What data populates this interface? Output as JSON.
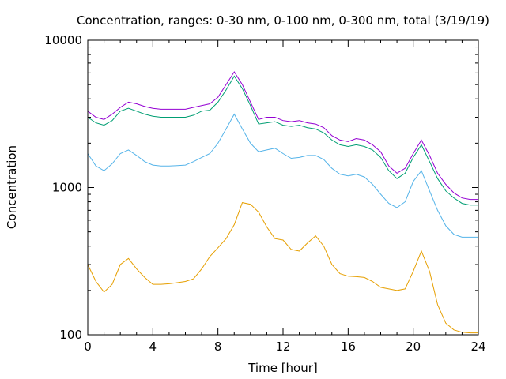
{
  "chart_data": {
    "type": "line",
    "title": "Concentration, ranges: 0-30 nm, 0-100 nm, 0-300 nm, total (3/19/19)",
    "xlabel": "Time [hour]",
    "ylabel": "Concentration",
    "xlim": [
      0,
      24
    ],
    "ylim": [
      100,
      10000
    ],
    "yscale": "log",
    "grid": false,
    "legend": "none",
    "x_ticks": [
      {
        "value": 0,
        "label": "0"
      },
      {
        "value": 4,
        "label": "4"
      },
      {
        "value": 8,
        "label": "8"
      },
      {
        "value": 12,
        "label": "12"
      },
      {
        "value": 16,
        "label": "16"
      },
      {
        "value": 20,
        "label": "20"
      },
      {
        "value": 24,
        "label": "24"
      }
    ],
    "y_ticks": [
      {
        "value": 100,
        "label": "100"
      },
      {
        "value": 1000,
        "label": "1000"
      },
      {
        "value": 10000,
        "label": "10000"
      }
    ],
    "x": [
      0,
      0.5,
      1,
      1.5,
      2,
      2.5,
      3,
      3.5,
      4,
      4.5,
      5,
      5.5,
      6,
      6.5,
      7,
      7.5,
      8,
      8.5,
      9,
      9.5,
      10,
      10.5,
      11,
      11.5,
      12,
      12.5,
      13,
      13.5,
      14,
      14.5,
      15,
      15.5,
      16,
      16.5,
      17,
      17.5,
      18,
      18.5,
      19,
      19.5,
      20,
      20.5,
      21,
      21.5,
      22,
      22.5,
      23,
      23.5,
      24
    ],
    "series": [
      {
        "color": "#e69f00",
        "values": [
          300,
          230,
          195,
          220,
          300,
          330,
          280,
          245,
          220,
          220,
          222,
          226,
          230,
          240,
          280,
          340,
          390,
          450,
          560,
          790,
          770,
          680,
          540,
          450,
          440,
          380,
          370,
          420,
          470,
          400,
          300,
          260,
          250,
          248,
          245,
          230,
          210,
          205,
          200,
          205,
          270,
          370,
          270,
          160,
          120,
          108,
          104,
          103,
          103
        ]
      },
      {
        "color": "#56b4e9",
        "values": [
          1700,
          1400,
          1300,
          1450,
          1700,
          1800,
          1650,
          1500,
          1420,
          1400,
          1400,
          1410,
          1420,
          1500,
          1600,
          1700,
          2000,
          2500,
          3150,
          2500,
          2000,
          1750,
          1800,
          1850,
          1700,
          1580,
          1600,
          1650,
          1650,
          1550,
          1350,
          1230,
          1200,
          1230,
          1180,
          1050,
          900,
          780,
          730,
          800,
          1100,
          1300,
          950,
          700,
          550,
          480,
          460,
          460,
          460
        ]
      },
      {
        "color": "#009e73",
        "values": [
          3000,
          2750,
          2650,
          2850,
          3300,
          3450,
          3300,
          3150,
          3050,
          3000,
          3000,
          3000,
          3000,
          3100,
          3300,
          3350,
          3800,
          4600,
          5700,
          4700,
          3600,
          2700,
          2750,
          2800,
          2650,
          2600,
          2650,
          2550,
          2500,
          2350,
          2100,
          1950,
          1900,
          1950,
          1900,
          1800,
          1600,
          1300,
          1150,
          1250,
          1600,
          1950,
          1500,
          1150,
          950,
          850,
          780,
          760,
          760
        ]
      },
      {
        "color": "#9400d3",
        "values": [
          3300,
          3000,
          2900,
          3150,
          3500,
          3800,
          3700,
          3550,
          3450,
          3400,
          3400,
          3400,
          3400,
          3500,
          3600,
          3700,
          4100,
          5000,
          6100,
          5000,
          3800,
          2900,
          3000,
          3000,
          2850,
          2800,
          2850,
          2750,
          2700,
          2550,
          2250,
          2100,
          2050,
          2150,
          2100,
          1950,
          1750,
          1400,
          1250,
          1350,
          1700,
          2100,
          1650,
          1250,
          1050,
          920,
          850,
          830,
          830
        ]
      }
    ]
  }
}
